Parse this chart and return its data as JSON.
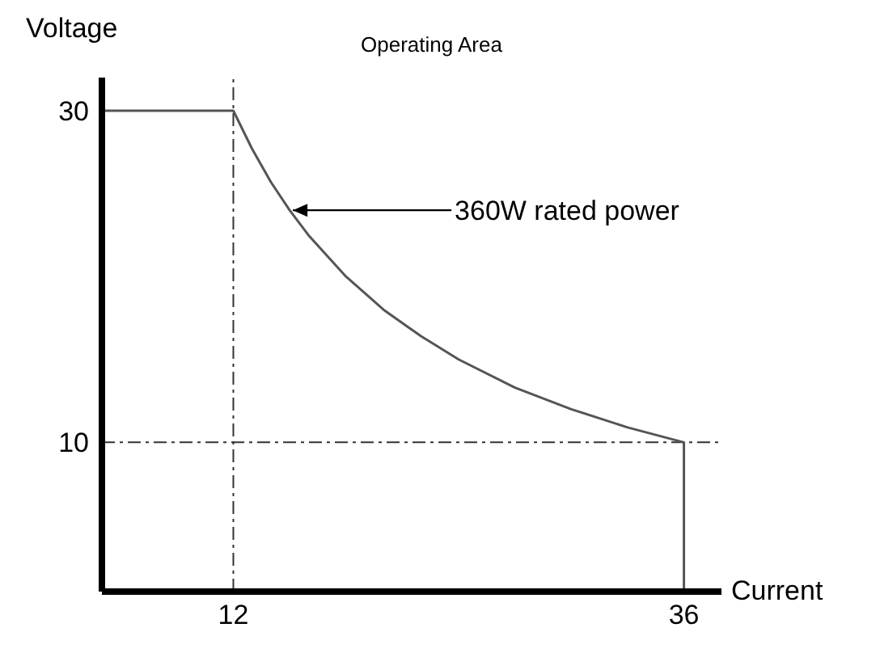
{
  "chart_data": {
    "type": "line",
    "title": "Operating Area",
    "xlabel": "Current",
    "ylabel": "Voltage",
    "x": [
      5,
      12,
      13,
      14,
      15,
      16,
      18,
      20,
      22,
      24,
      27,
      30,
      33,
      36,
      36
    ],
    "series": [
      {
        "color": "#555555",
        "values": [
          30,
          30,
          27.7,
          25.7,
          24,
          22.5,
          20,
          18,
          16.4,
          15,
          13.3,
          12,
          10.9,
          10,
          1
        ]
      }
    ],
    "xlim": [
      5,
      38
    ],
    "ylim": [
      1,
      32
    ],
    "xticks": [
      12,
      36
    ],
    "yticks": [
      10,
      30
    ],
    "ref_lines": [
      {
        "axis": "x",
        "value": 12,
        "line_style": "dashed"
      },
      {
        "axis": "y",
        "value": 10,
        "line_style": "dashed"
      }
    ],
    "annotations": [
      {
        "text": "360W rated power",
        "x": 15,
        "y": 24
      }
    ],
    "grid": false,
    "legend": false,
    "marker": "none",
    "line_style": "solid"
  }
}
